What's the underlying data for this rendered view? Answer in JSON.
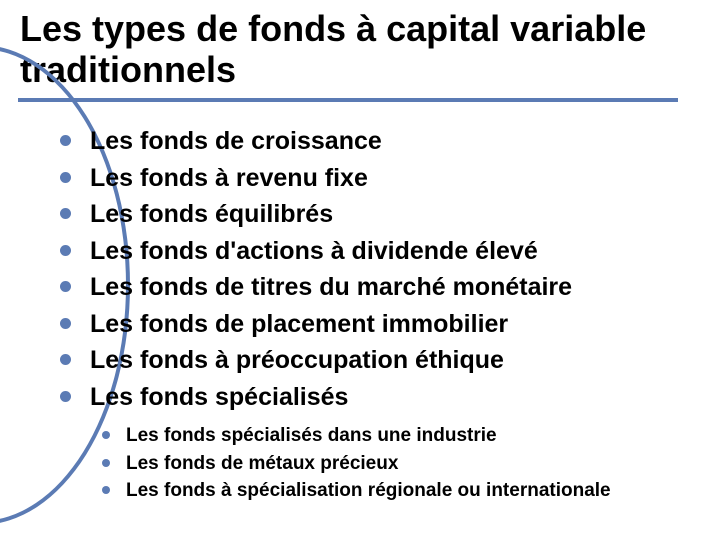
{
  "slide": {
    "title": "Les types de fonds à capital variable traditionnels",
    "accent_color": "#5b7bb4",
    "background_color": "#ffffff",
    "title_fontsize": 36,
    "main_fontsize": 25,
    "sub_fontsize": 19,
    "main_items": [
      "Les fonds de croissance",
      "Les fonds à revenu fixe",
      "Les fonds équilibrés",
      "Les fonds d'actions à dividende élevé",
      "Les fonds de titres du marché monétaire",
      "Les fonds de placement immobilier",
      "Les fonds à préoccupation éthique",
      "Les fonds spécialisés"
    ],
    "sub_items": [
      "Les fonds spécialisés dans une industrie",
      "Les fonds de métaux précieux",
      "Les fonds à spécialisation régionale ou internationale"
    ]
  }
}
